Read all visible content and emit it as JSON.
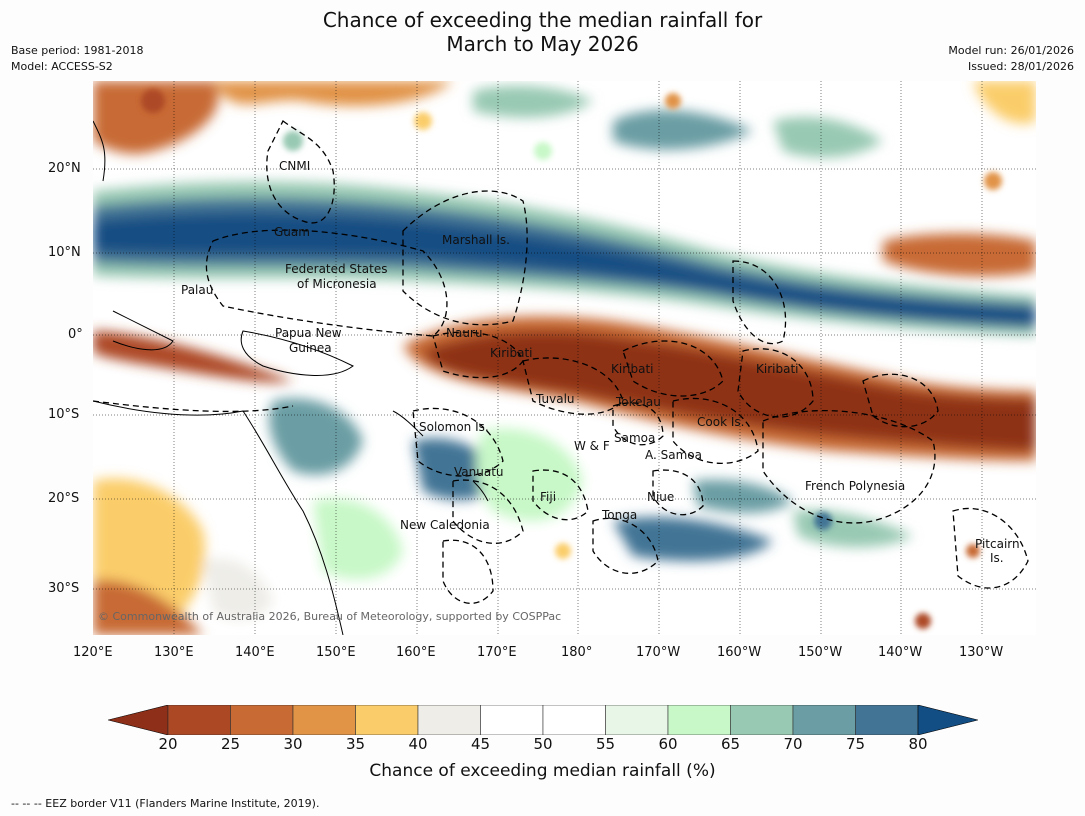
{
  "title": {
    "line1": "Chance of exceeding the median rainfall for",
    "line2": "March to May 2026"
  },
  "meta_left": {
    "base_period": "Base period: 1981-2018",
    "model": "Model: ACCESS-S2"
  },
  "meta_right": {
    "model_run": "Model run: 26/01/2026",
    "issued": "Issued: 28/01/2026"
  },
  "map": {
    "lat_labels": [
      "20°N",
      "10°N",
      "0°",
      "10°S",
      "20°S",
      "30°S"
    ],
    "lon_labels": [
      "120°E",
      "130°E",
      "140°E",
      "150°E",
      "160°E",
      "170°E",
      "180°",
      "170°W",
      "160°W",
      "150°W",
      "140°W",
      "130°W"
    ],
    "regions": {
      "cnmi": "CNMI",
      "guam": "Guam",
      "marshall": "Marshall Is.",
      "micronesia_1": "Federated States",
      "micronesia_2": "of Micronesia",
      "palau": "Palau",
      "nauru": "Nauru",
      "png_1": "Papua New",
      "png_2": "Guinea",
      "kiribati_w": "Kiribati",
      "kiribati_c": "Kiribati",
      "kiribati_e": "Kiribati",
      "tuvalu": "Tuvalu",
      "tokelau": "Tokelau",
      "cook": "Cook Is.",
      "solomon": "Solomon Is.",
      "samoa": "Samoa",
      "wf": "W & F",
      "asamoa": "A. Samoa",
      "vanuatu": "Vanuatu",
      "fiji": "Fiji",
      "niue": "Niue",
      "tonga": "Tonga",
      "french_polynesia": "French Polynesia",
      "new_caledonia": "New Caledonia",
      "pitcairn_1": "Pitcairn",
      "pitcairn_2": "Is."
    },
    "copyright": "© Commonwealth of Australia 2026, Bureau of Meteorology, supported by COSPPac"
  },
  "colorbar": {
    "ticks": [
      "20",
      "25",
      "30",
      "35",
      "40",
      "45",
      "50",
      "55",
      "60",
      "65",
      "70",
      "75",
      "80"
    ],
    "colors": [
      "#8e3019",
      "#ad4825",
      "#c86a34",
      "#e19346",
      "#fbcd6a",
      "#eeede8",
      "#ffffff",
      "#ffffff",
      "#e7f6e7",
      "#c8f8c8",
      "#98c9b3",
      "#6a9ea4",
      "#427595",
      "#124e83"
    ],
    "title": "Chance of exceeding median rainfall (%)"
  },
  "footer": "--  --  -- EEZ border V11 (Flanders Marine Institute, 2019)."
}
